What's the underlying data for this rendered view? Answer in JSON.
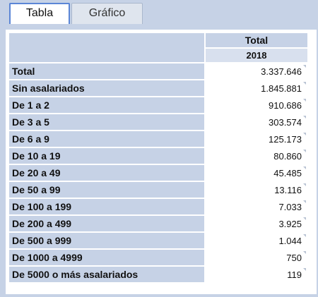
{
  "tabs": [
    {
      "label": "Tabla",
      "active": true
    },
    {
      "label": "Gráfico",
      "active": false
    }
  ],
  "table": {
    "column_header": "Total",
    "year_header": "2018",
    "rows": [
      {
        "label": "Total",
        "value": "3.337.646"
      },
      {
        "label": "Sin asalariados",
        "value": "1.845.881"
      },
      {
        "label": "De 1 a 2",
        "value": "910.686"
      },
      {
        "label": "De 3 a 5",
        "value": "303.574"
      },
      {
        "label": "De 6 a 9",
        "value": "125.173"
      },
      {
        "label": "De 10 a 19",
        "value": "80.860"
      },
      {
        "label": "De 20 a 49",
        "value": "45.485"
      },
      {
        "label": "De 50 a 99",
        "value": "13.116"
      },
      {
        "label": "De 100 a 199",
        "value": "7.033"
      },
      {
        "label": "De 200 a 499",
        "value": "3.925"
      },
      {
        "label": "De 500 a 999",
        "value": "1.044"
      },
      {
        "label": "De 1000 a 4999",
        "value": "750"
      },
      {
        "label": "De 5000 o más asalariados",
        "value": "119"
      }
    ]
  },
  "colors": {
    "header_bg": "#c6d2e6",
    "active_tab_border": "#5b86d6"
  }
}
